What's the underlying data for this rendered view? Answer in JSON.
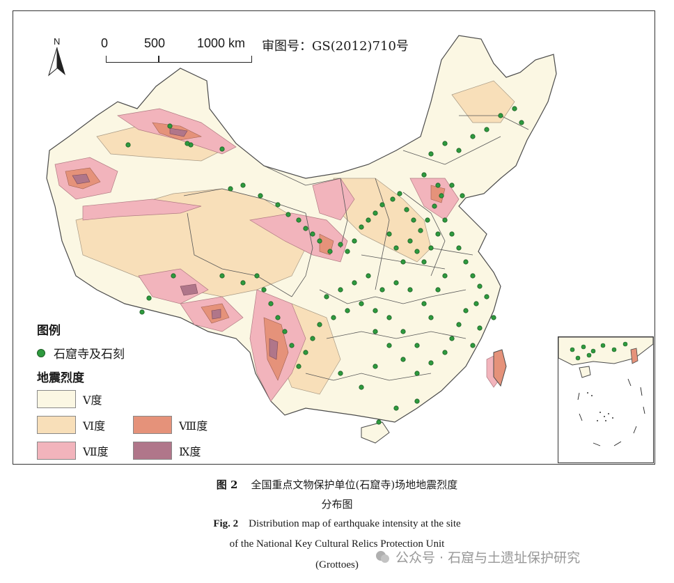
{
  "map": {
    "north_label": "N",
    "scale": {
      "ticks": [
        "0",
        "500",
        "1000 km"
      ]
    },
    "approval_no": "审图号：GS(2012)710号",
    "colors": {
      "V": "#fbf7e3",
      "VI": "#f8dfb9",
      "VII": "#f2b4bc",
      "VIII": "#e5927a",
      "IX": "#b0768a",
      "site": "#2e9a3e",
      "border": "#4a4a4a"
    }
  },
  "legend": {
    "title": "图例",
    "site_label": "石窟寺及石刻",
    "intensity_title": "地震烈度",
    "intensity_items": [
      {
        "label": "Ⅴ度",
        "key": "V"
      },
      {
        "label": "Ⅵ度",
        "key": "VI"
      },
      {
        "label": "Ⅶ度",
        "key": "VII"
      },
      {
        "label": "Ⅷ度",
        "key": "VIII"
      },
      {
        "label": "Ⅸ度",
        "key": "IX"
      }
    ]
  },
  "caption": {
    "cn_label": "图 2",
    "cn_text_1": "全国重点文物保护单位(石窟寺)场地地震烈度",
    "cn_text_2": "分布图",
    "en_label": "Fig. 2",
    "en_text_1": "Distribution map of earthquake intensity at the site",
    "en_text_2": "of the National Key Cultural Relics Protection Unit",
    "en_text_3": "(Grottoes)"
  },
  "watermark": {
    "text": "公众号 · 石窟与土遗址保护研究"
  }
}
